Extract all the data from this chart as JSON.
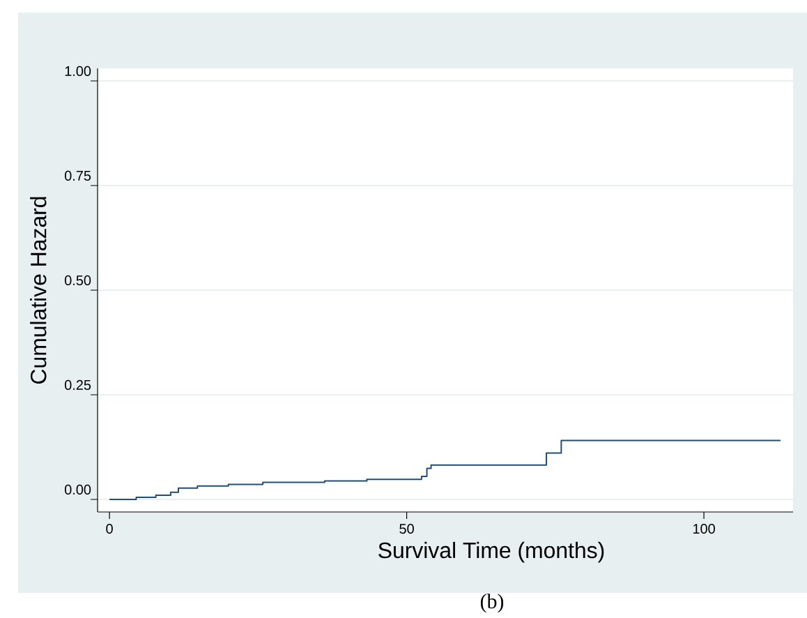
{
  "chart_data": {
    "type": "step",
    "xlabel": "Survival Time (months)",
    "ylabel": "Cumulative Hazard",
    "annotations": [
      "(b)"
    ],
    "series": [
      {
        "color": "#1f4e79",
        "x": [
          0,
          4.5,
          7.8,
          10.3,
          11.6,
          14.8,
          20,
          25.8,
          36.2,
          43.3,
          52.5,
          53.4,
          54.1,
          73.5,
          76,
          112.9
        ],
        "values": [
          0,
          0.005,
          0.01,
          0.017,
          0.027,
          0.032,
          0.036,
          0.041,
          0.044,
          0.048,
          0.055,
          0.074,
          0.082,
          0.111,
          0.141,
          0.141
        ]
      }
    ],
    "xlim": [
      -2,
      115
    ],
    "ylim": [
      -0.03,
      1.03
    ],
    "xticks": [
      0,
      50,
      100
    ],
    "yticks": [
      {
        "value": 0,
        "label": "0.00"
      },
      {
        "value": 0.25,
        "label": "0.25"
      },
      {
        "value": 0.5,
        "label": "0.50"
      },
      {
        "value": 0.75,
        "label": "0.75"
      },
      {
        "value": 1,
        "label": "1.00"
      }
    ],
    "grid": "y"
  }
}
